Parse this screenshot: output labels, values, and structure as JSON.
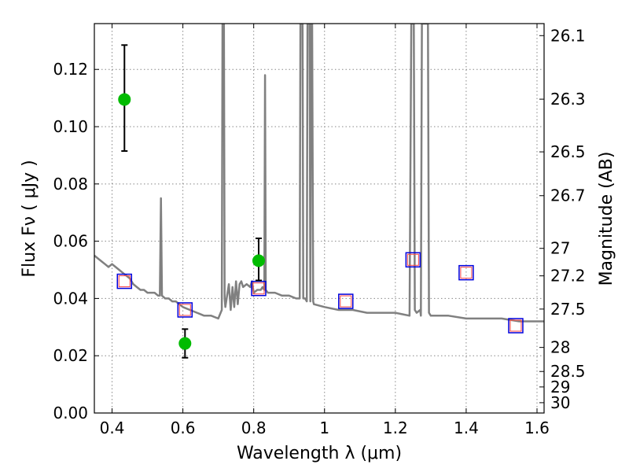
{
  "chart_data": {
    "type": "scatter",
    "xlabel": "Wavelength  λ (μm)",
    "ylabel": "Flux  Fν  ( μJy )",
    "y2label": "Magnitude (AB)",
    "xlim": [
      0.35,
      1.62
    ],
    "ylim": [
      0.0,
      0.136
    ],
    "x_ticks": [
      0.4,
      0.6,
      0.8,
      1.0,
      1.2,
      1.4,
      1.6
    ],
    "x_tick_labels": [
      "0.4",
      "0.6",
      "0.8",
      "1",
      "1.2",
      "1.4",
      "1.6"
    ],
    "y_ticks": [
      0.0,
      0.02,
      0.04,
      0.06,
      0.08,
      0.1,
      0.12
    ],
    "y_tick_labels": [
      "0.00",
      "0.02",
      "0.04",
      "0.06",
      "0.08",
      "0.10",
      "0.12"
    ],
    "y2_ticks": [
      {
        "label": "26.1",
        "flux": 0.1318
      },
      {
        "label": "26.3",
        "flux": 0.1096
      },
      {
        "label": "26.5",
        "flux": 0.0912
      },
      {
        "label": "26.7",
        "flux": 0.0759
      },
      {
        "label": "27",
        "flux": 0.0575
      },
      {
        "label": "27.2",
        "flux": 0.0479
      },
      {
        "label": "27.5",
        "flux": 0.0363
      },
      {
        "label": "28",
        "flux": 0.0229
      },
      {
        "label": "28.5",
        "flux": 0.0145
      },
      {
        "label": "29",
        "flux": 0.0091
      },
      {
        "label": "30",
        "flux": 0.0036
      }
    ],
    "grid": true,
    "colors": {
      "spectrum": "#808080",
      "observed": "#00bb00",
      "model_box": "#0000dd",
      "model_inner": "#ff4444",
      "errorbar": "#000000",
      "grid": "#888888"
    },
    "spectrum": {
      "x": [
        0.35,
        0.36,
        0.37,
        0.38,
        0.39,
        0.4,
        0.41,
        0.42,
        0.43,
        0.44,
        0.45,
        0.455,
        0.46,
        0.47,
        0.48,
        0.49,
        0.5,
        0.51,
        0.52,
        0.53,
        0.535,
        0.538,
        0.541,
        0.55,
        0.56,
        0.57,
        0.58,
        0.6,
        0.62,
        0.64,
        0.66,
        0.68,
        0.7,
        0.71,
        0.712,
        0.714,
        0.716,
        0.718,
        0.72,
        0.73,
        0.735,
        0.74,
        0.745,
        0.75,
        0.755,
        0.76,
        0.765,
        0.77,
        0.78,
        0.79,
        0.795,
        0.8,
        0.81,
        0.82,
        0.825,
        0.83,
        0.832,
        0.834,
        0.84,
        0.86,
        0.88,
        0.9,
        0.92,
        0.93,
        0.932,
        0.935,
        0.938,
        0.94,
        0.945,
        0.95,
        0.952,
        0.955,
        0.958,
        0.96,
        0.962,
        0.965,
        0.968,
        0.97,
        1.0,
        1.04,
        1.08,
        1.12,
        1.16,
        1.2,
        1.24,
        1.245,
        1.248,
        1.252,
        1.255,
        1.26,
        1.27,
        1.272,
        1.275,
        1.278,
        1.28,
        1.283,
        1.286,
        1.29,
        1.292,
        1.295,
        1.3,
        1.35,
        1.4,
        1.45,
        1.5,
        1.55,
        1.6,
        1.62
      ],
      "y": [
        0.055,
        0.054,
        0.053,
        0.052,
        0.051,
        0.052,
        0.051,
        0.05,
        0.049,
        0.048,
        0.047,
        0.046,
        0.045,
        0.044,
        0.043,
        0.043,
        0.042,
        0.042,
        0.042,
        0.041,
        0.041,
        0.075,
        0.041,
        0.04,
        0.04,
        0.039,
        0.039,
        0.037,
        0.036,
        0.035,
        0.034,
        0.034,
        0.033,
        0.036,
        0.136,
        0.136,
        0.136,
        0.04,
        0.037,
        0.045,
        0.036,
        0.044,
        0.037,
        0.046,
        0.038,
        0.045,
        0.046,
        0.044,
        0.045,
        0.044,
        0.046,
        0.042,
        0.043,
        0.043,
        0.044,
        0.043,
        0.118,
        0.043,
        0.042,
        0.042,
        0.041,
        0.041,
        0.04,
        0.04,
        0.136,
        0.136,
        0.136,
        0.04,
        0.04,
        0.039,
        0.136,
        0.136,
        0.136,
        0.039,
        0.136,
        0.136,
        0.039,
        0.038,
        0.037,
        0.036,
        0.036,
        0.035,
        0.035,
        0.035,
        0.034,
        0.136,
        0.136,
        0.136,
        0.036,
        0.035,
        0.036,
        0.034,
        0.136,
        0.136,
        0.136,
        0.136,
        0.136,
        0.136,
        0.136,
        0.035,
        0.034,
        0.034,
        0.033,
        0.033,
        0.033,
        0.032,
        0.032,
        0.032
      ]
    },
    "observed": [
      {
        "x": 0.435,
        "y": 0.1095,
        "yerr_low": 0.0915,
        "yerr_high": 0.1285
      },
      {
        "x": 0.606,
        "y": 0.0243,
        "yerr_low": 0.0193,
        "yerr_high": 0.0293
      },
      {
        "x": 0.814,
        "y": 0.0532,
        "yerr_low": 0.0463,
        "yerr_high": 0.061
      }
    ],
    "model": [
      {
        "x": 0.435,
        "y": 0.046
      },
      {
        "x": 0.606,
        "y": 0.036
      },
      {
        "x": 0.814,
        "y": 0.0435
      },
      {
        "x": 1.06,
        "y": 0.039
      },
      {
        "x": 1.25,
        "y": 0.0535
      },
      {
        "x": 1.4,
        "y": 0.049
      },
      {
        "x": 1.54,
        "y": 0.0305
      }
    ]
  }
}
